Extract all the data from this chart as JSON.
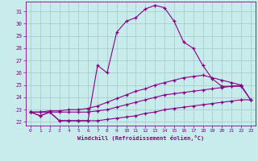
{
  "xlabel": "Windchill (Refroidissement éolien,°C)",
  "background_color": "#c8ecec",
  "line_color": "#880088",
  "grid_color": "#aacccc",
  "xlim": [
    -0.5,
    23.5
  ],
  "ylim": [
    21.7,
    31.8
  ],
  "xticks": [
    0,
    1,
    2,
    3,
    4,
    5,
    6,
    7,
    8,
    9,
    10,
    11,
    12,
    13,
    14,
    15,
    16,
    17,
    18,
    19,
    20,
    21,
    22,
    23
  ],
  "yticks": [
    22,
    23,
    24,
    25,
    26,
    27,
    28,
    29,
    30,
    31
  ],
  "curve1_x": [
    0,
    1,
    2,
    3,
    4,
    5,
    6,
    7,
    8,
    9,
    10,
    11,
    12,
    13,
    14,
    15,
    16,
    17,
    18,
    19,
    20,
    21,
    22
  ],
  "curve1_y": [
    22.8,
    22.5,
    22.8,
    22.1,
    22.1,
    22.1,
    22.1,
    26.6,
    26.0,
    29.3,
    30.2,
    30.5,
    31.2,
    31.5,
    31.3,
    30.2,
    28.5,
    28.0,
    26.6,
    25.5,
    24.9,
    24.9,
    25.0
  ],
  "curve2_x": [
    0,
    1,
    2,
    3,
    4,
    5,
    6,
    7,
    8,
    9,
    10,
    11,
    12,
    13,
    14,
    15,
    16,
    17,
    18,
    19,
    20,
    21,
    22,
    23
  ],
  "curve2_y": [
    22.8,
    22.8,
    22.9,
    22.9,
    23.0,
    23.0,
    23.1,
    23.3,
    23.6,
    23.9,
    24.2,
    24.5,
    24.7,
    25.0,
    25.2,
    25.4,
    25.6,
    25.7,
    25.8,
    25.6,
    25.4,
    25.2,
    25.0,
    23.8
  ],
  "curve3_x": [
    0,
    1,
    2,
    3,
    4,
    5,
    6,
    7,
    8,
    9,
    10,
    11,
    12,
    13,
    14,
    15,
    16,
    17,
    18,
    19,
    20,
    21,
    22,
    23
  ],
  "curve3_y": [
    22.8,
    22.8,
    22.8,
    22.8,
    22.8,
    22.8,
    22.8,
    22.9,
    23.0,
    23.2,
    23.4,
    23.6,
    23.8,
    24.0,
    24.2,
    24.3,
    24.4,
    24.5,
    24.6,
    24.7,
    24.8,
    24.9,
    24.9,
    23.8
  ],
  "curve4_x": [
    0,
    1,
    2,
    3,
    4,
    5,
    6,
    7,
    8,
    9,
    10,
    11,
    12,
    13,
    14,
    15,
    16,
    17,
    18,
    19,
    20,
    21,
    22,
    23
  ],
  "curve4_y": [
    22.8,
    22.5,
    22.8,
    22.1,
    22.1,
    22.1,
    22.1,
    22.1,
    22.2,
    22.3,
    22.4,
    22.5,
    22.7,
    22.8,
    23.0,
    23.1,
    23.2,
    23.3,
    23.4,
    23.5,
    23.6,
    23.7,
    23.8,
    23.8
  ]
}
